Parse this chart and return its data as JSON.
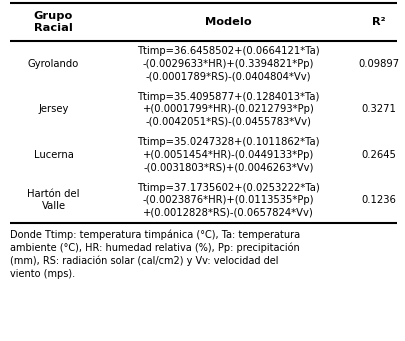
{
  "headers": [
    "Grupo\nRacial",
    "Modelo",
    "R²"
  ],
  "rows": [
    {
      "group": "Gyrolando",
      "model_lines": [
        "Ttimp=36.6458502+(0.0664121*Ta)",
        "-(0.0029633*HR)+(0.3394821*Pp)",
        "-(0.0001789*RS)-(0.0404804*Vv)"
      ],
      "r2": "0.09897"
    },
    {
      "group": "Jersey",
      "model_lines": [
        "Ttimp=35.4095877+(0.1284013*Ta)",
        "+(0.0001799*HR)-(0.0212793*Pp)",
        "-(0.0042051*RS)-(0.0455783*Vv)"
      ],
      "r2": "0.3271"
    },
    {
      "group": "Lucerna",
      "model_lines": [
        "Ttimp=35.0247328+(0.1011862*Ta)",
        "+(0.0051454*HR)-(0.0449133*Pp)",
        "-(0.0031803*RS)+(0.0046263*Vv)"
      ],
      "r2": "0.2645"
    },
    {
      "group": "Hartón del\nValle",
      "model_lines": [
        "Ttimp=37.1735602+(0.0253222*Ta)",
        "-(0.0023876*HR)+(0.0113535*Pp)",
        "+(0.0012828*RS)-(0.0657824*Vv)"
      ],
      "r2": "0.1236"
    }
  ],
  "footnote": "Donde Ttimp: temperatura timpánica (°C), Ta: temperatura\nambiente (°C), HR: humedad relativa (%), Pp: precipitación\n(mm), RS: radiación solar (cal/cm2) y Vv: velocidad del\nviento (mps).",
  "bg_color": "#ffffff",
  "font_size": 7.2,
  "header_font_size": 8.2,
  "footnote_font_size": 7.0
}
